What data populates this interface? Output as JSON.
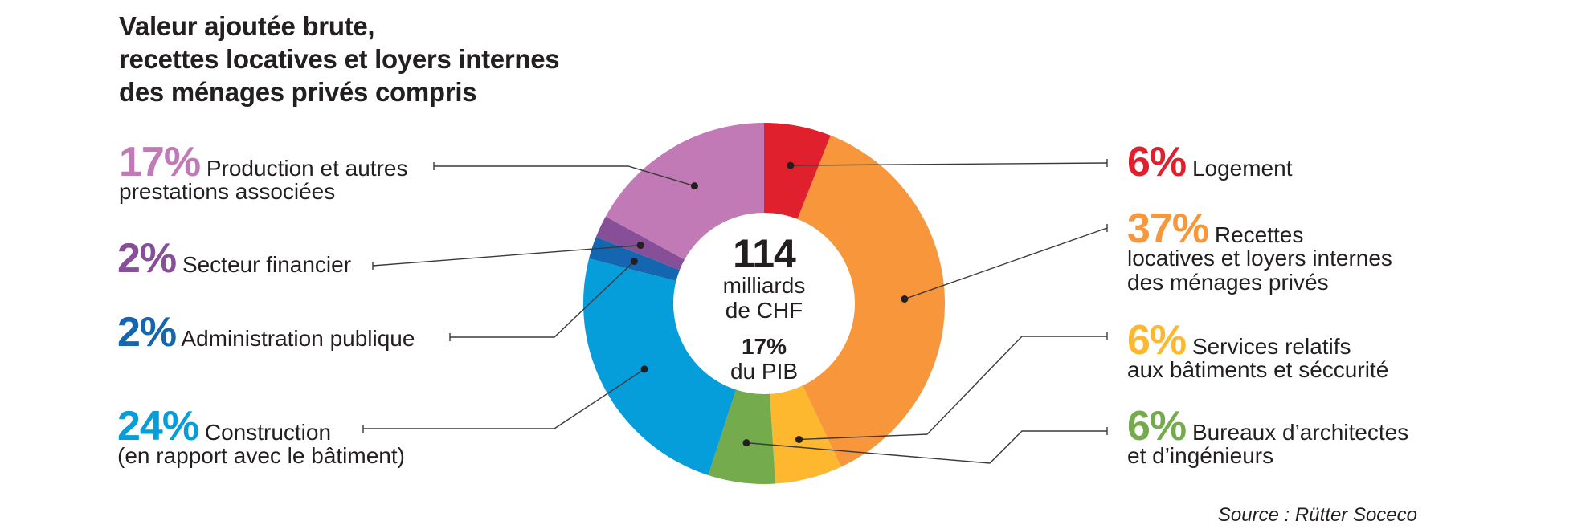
{
  "chart_data": {
    "type": "pie",
    "variant": "donut",
    "title_lines": [
      "Valeur ajoutée brute,",
      "recettes locatives et loyers internes",
      "des ménages privés compris"
    ],
    "center": {
      "value": "114",
      "unit_line1": "milliards",
      "unit_line2": "de CHF",
      "share": "17%",
      "share_label": "du PIB"
    },
    "slices": [
      {
        "pct_label": "6%",
        "value": 6,
        "name": "Logement",
        "line2": "",
        "color": "#e1202e"
      },
      {
        "pct_label": "37%",
        "value": 37,
        "name": "Recettes",
        "line2": "locatives et loyers internes",
        "line3": "des ménages privés",
        "color": "#f7963b"
      },
      {
        "pct_label": "6%",
        "value": 6,
        "name": "Services relatifs",
        "line2": "aux bâtiments et séccurité",
        "color": "#fdb82f"
      },
      {
        "pct_label": "6%",
        "value": 6,
        "name": "Bureaux d’architectes",
        "line2": "et d’ingénieurs",
        "color": "#74ab4d"
      },
      {
        "pct_label": "24%",
        "value": 24,
        "name": "Construction",
        "line2": "(en rapport avec le bâtiment)",
        "color": "#069ddb"
      },
      {
        "pct_label": "2%",
        "value": 2,
        "name": "Administration publique",
        "line2": "",
        "color": "#1566b0"
      },
      {
        "pct_label": "2%",
        "value": 2,
        "name": "Secteur financier",
        "line2": "",
        "color": "#864f98"
      },
      {
        "pct_label": "17%",
        "value": 17,
        "name": "Production et autres",
        "line2": "prestations associées",
        "color": "#c17ab6"
      }
    ],
    "source": "Source : Rütter Soceco"
  }
}
